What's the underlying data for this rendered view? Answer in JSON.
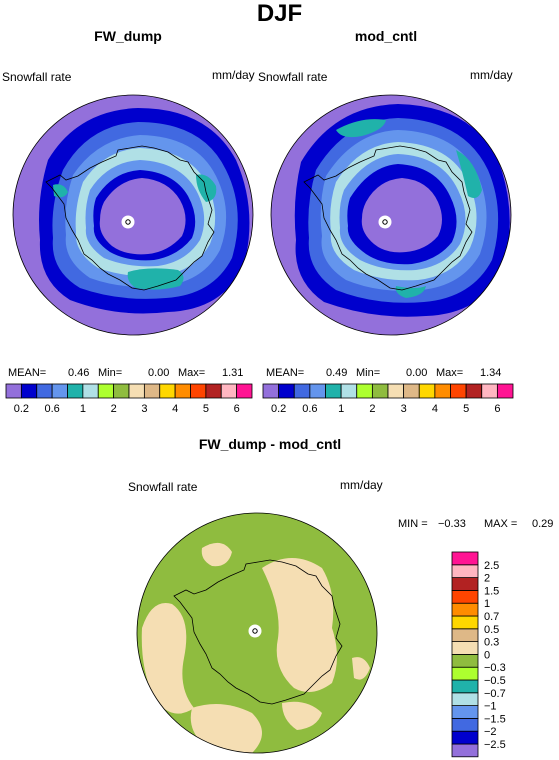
{
  "main_title": "DJF",
  "panels": [
    {
      "title": "FW_dump",
      "variable": "Snowfall rate",
      "units": "mm/day",
      "stats": {
        "mean_label": "MEAN=",
        "mean": "0.46",
        "min_label": "Min=",
        "min": "0.00",
        "max_label": "Max=",
        "max": "1.31"
      }
    },
    {
      "title": "mod_cntl",
      "variable": "Snowfall rate",
      "units": "mm/day",
      "stats": {
        "mean_label": "MEAN=",
        "mean": "0.49",
        "min_label": "Min=",
        "min": "0.00",
        "max_label": "Max=",
        "max": "1.34"
      }
    }
  ],
  "diff_panel": {
    "title": "FW_dump - mod_cntl",
    "variable": "Snowfall rate",
    "units": "mm/day",
    "stats": {
      "min_label": "MIN =",
      "min": "−0.33",
      "max_label": "MAX =",
      "max": "0.29"
    }
  },
  "colorbar_main": {
    "colors": [
      "#9370db",
      "#0000cd",
      "#4169e1",
      "#6495ed",
      "#20b2aa",
      "#b0e0e6",
      "#adff2f",
      "#8fbc3f",
      "#f5deb3",
      "#deb887",
      "#ffd700",
      "#ff8c00",
      "#ff4500",
      "#b22222",
      "#ffb6c1",
      "#ff1493"
    ],
    "labels": [
      "0.2",
      "0.6",
      "1",
      "2",
      "3",
      "4",
      "5",
      "6"
    ]
  },
  "colorbar_diff": {
    "colors": [
      "#9370db",
      "#0000cd",
      "#4169e1",
      "#6495ed",
      "#b0e0e6",
      "#20b2aa",
      "#adff2f",
      "#8fbc3f",
      "#f5deb3",
      "#deb887",
      "#ffd700",
      "#ff8c00",
      "#ff4500",
      "#b22222",
      "#ffb6c1",
      "#ff1493"
    ],
    "labels": [
      "−2.5",
      "−2",
      "−1.5",
      "−1",
      "−0.7",
      "−0.5",
      "−0.3",
      "0",
      "0.3",
      "0.5",
      "0.7",
      "1",
      "1.5",
      "2",
      "2.5"
    ]
  },
  "map_colors": {
    "purple": "#9370db",
    "navy": "#0000cd",
    "royal": "#4169e1",
    "cornflower": "#6495ed",
    "powder": "#b0e0e6",
    "teal": "#20b2aa",
    "olive": "#8fbc3f",
    "wheat": "#f5deb3"
  }
}
